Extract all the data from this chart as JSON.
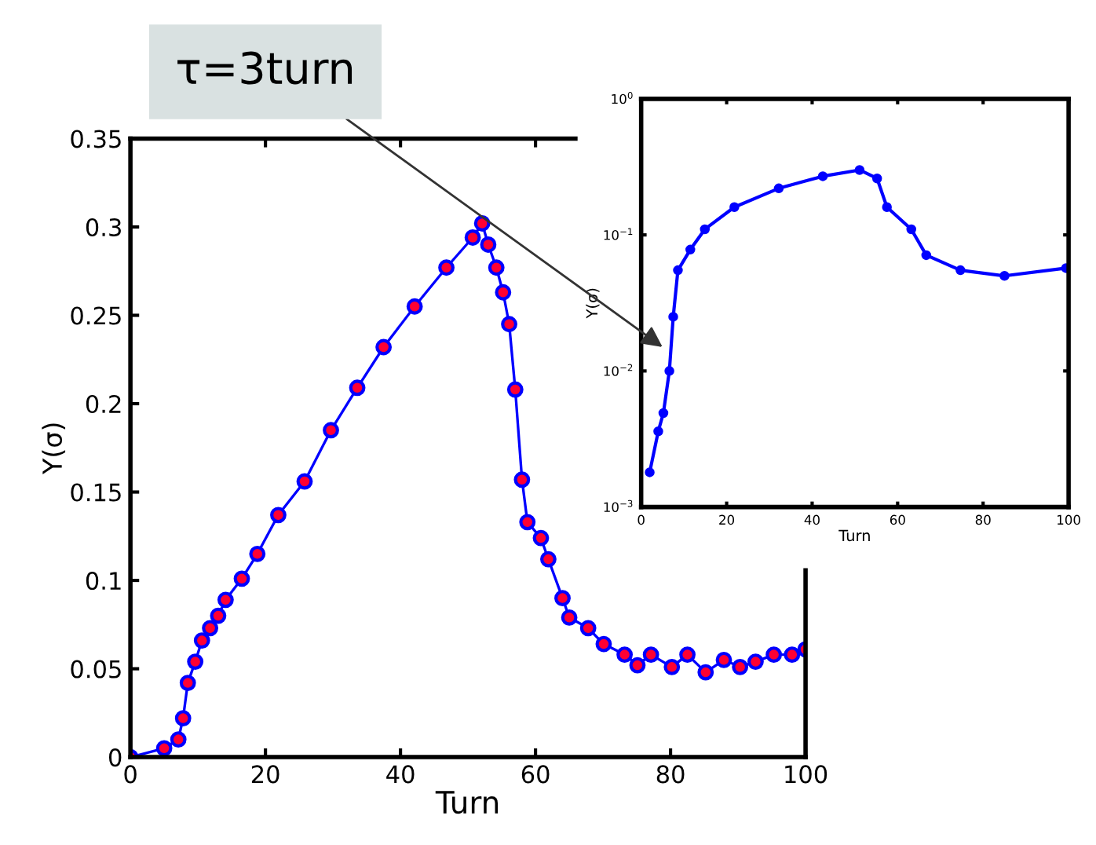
{
  "chart_data": [
    {
      "type": "line",
      "xlabel": "Turn",
      "ylabel": "Y(σ)",
      "marker": "circle",
      "line_style": "solid",
      "grid": false,
      "xlim": [
        0,
        100
      ],
      "ylim": [
        0,
        0.35
      ],
      "xticks": [
        0,
        20,
        40,
        60,
        80,
        100
      ],
      "yticks": [
        0,
        0.05,
        0.1,
        0.15,
        0.2,
        0.25,
        0.3,
        0.35
      ],
      "series": [
        {
          "color": "#0000ff",
          "x": [
            0,
            5,
            7.1,
            7.8,
            8.5,
            9.6,
            10.6,
            11.8,
            13,
            14.1,
            16.5,
            18.8,
            21.9,
            25.8,
            29.7,
            33.6,
            37.5,
            42.1,
            46.8,
            50.7,
            52.1,
            53,
            54.2,
            55.2,
            56.1,
            57,
            58,
            58.8,
            60.8,
            61.9,
            64,
            65,
            67.8,
            70.1,
            73.2,
            75.1,
            77.1,
            80.2,
            82.5,
            85.2,
            87.9,
            90.3,
            92.6,
            95.3,
            98,
            100
          ],
          "values": [
            0,
            0.005,
            0.01,
            0.022,
            0.042,
            0.054,
            0.066,
            0.073,
            0.08,
            0.089,
            0.101,
            0.115,
            0.137,
            0.156,
            0.185,
            0.209,
            0.232,
            0.255,
            0.277,
            0.294,
            0.302,
            0.29,
            0.277,
            0.263,
            0.245,
            0.208,
            0.157,
            0.133,
            0.124,
            0.112,
            0.09,
            0.079,
            0.073,
            0.064,
            0.058,
            0.052,
            0.058,
            0.051,
            0.058,
            0.048,
            0.055,
            0.051,
            0.054,
            0.058,
            0.058,
            0.061
          ]
        }
      ]
    },
    {
      "type": "line",
      "xlabel": "Turn",
      "ylabel": "Y(σ)",
      "marker": "circle",
      "line_style": "solid",
      "grid": false,
      "log": "y",
      "xlim": [
        0,
        100
      ],
      "ylim": [
        0.001,
        1
      ],
      "xticks": [
        0,
        20,
        40,
        60,
        80,
        100
      ],
      "yticks": [
        {
          "value": 0.001,
          "label": "10$^{−3}$"
        },
        {
          "value": 0.01,
          "label": "10$^{−2}$"
        },
        {
          "value": 0.1,
          "label": "10$^{−1}$"
        },
        {
          "value": 1,
          "label": "10$^{0}$"
        }
      ],
      "annotations": [
        {
          "text": "τ=3turn",
          "x": 5,
          "y": 0.015
        }
      ],
      "series": [
        {
          "color": "#0000ff",
          "x": [
            2,
            4,
            5.2,
            6.6,
            7.5,
            8.6,
            11.5,
            14.9,
            21.8,
            32.2,
            42.5,
            51.1,
            55.2,
            57.5,
            63.2,
            66.7,
            74.7,
            85,
            99.4
          ],
          "values": [
            0.0018,
            0.0036,
            0.0049,
            0.01,
            0.025,
            0.055,
            0.078,
            0.11,
            0.16,
            0.22,
            0.27,
            0.3,
            0.26,
            0.16,
            0.11,
            0.071,
            0.055,
            0.05,
            0.057
          ]
        }
      ]
    }
  ]
}
